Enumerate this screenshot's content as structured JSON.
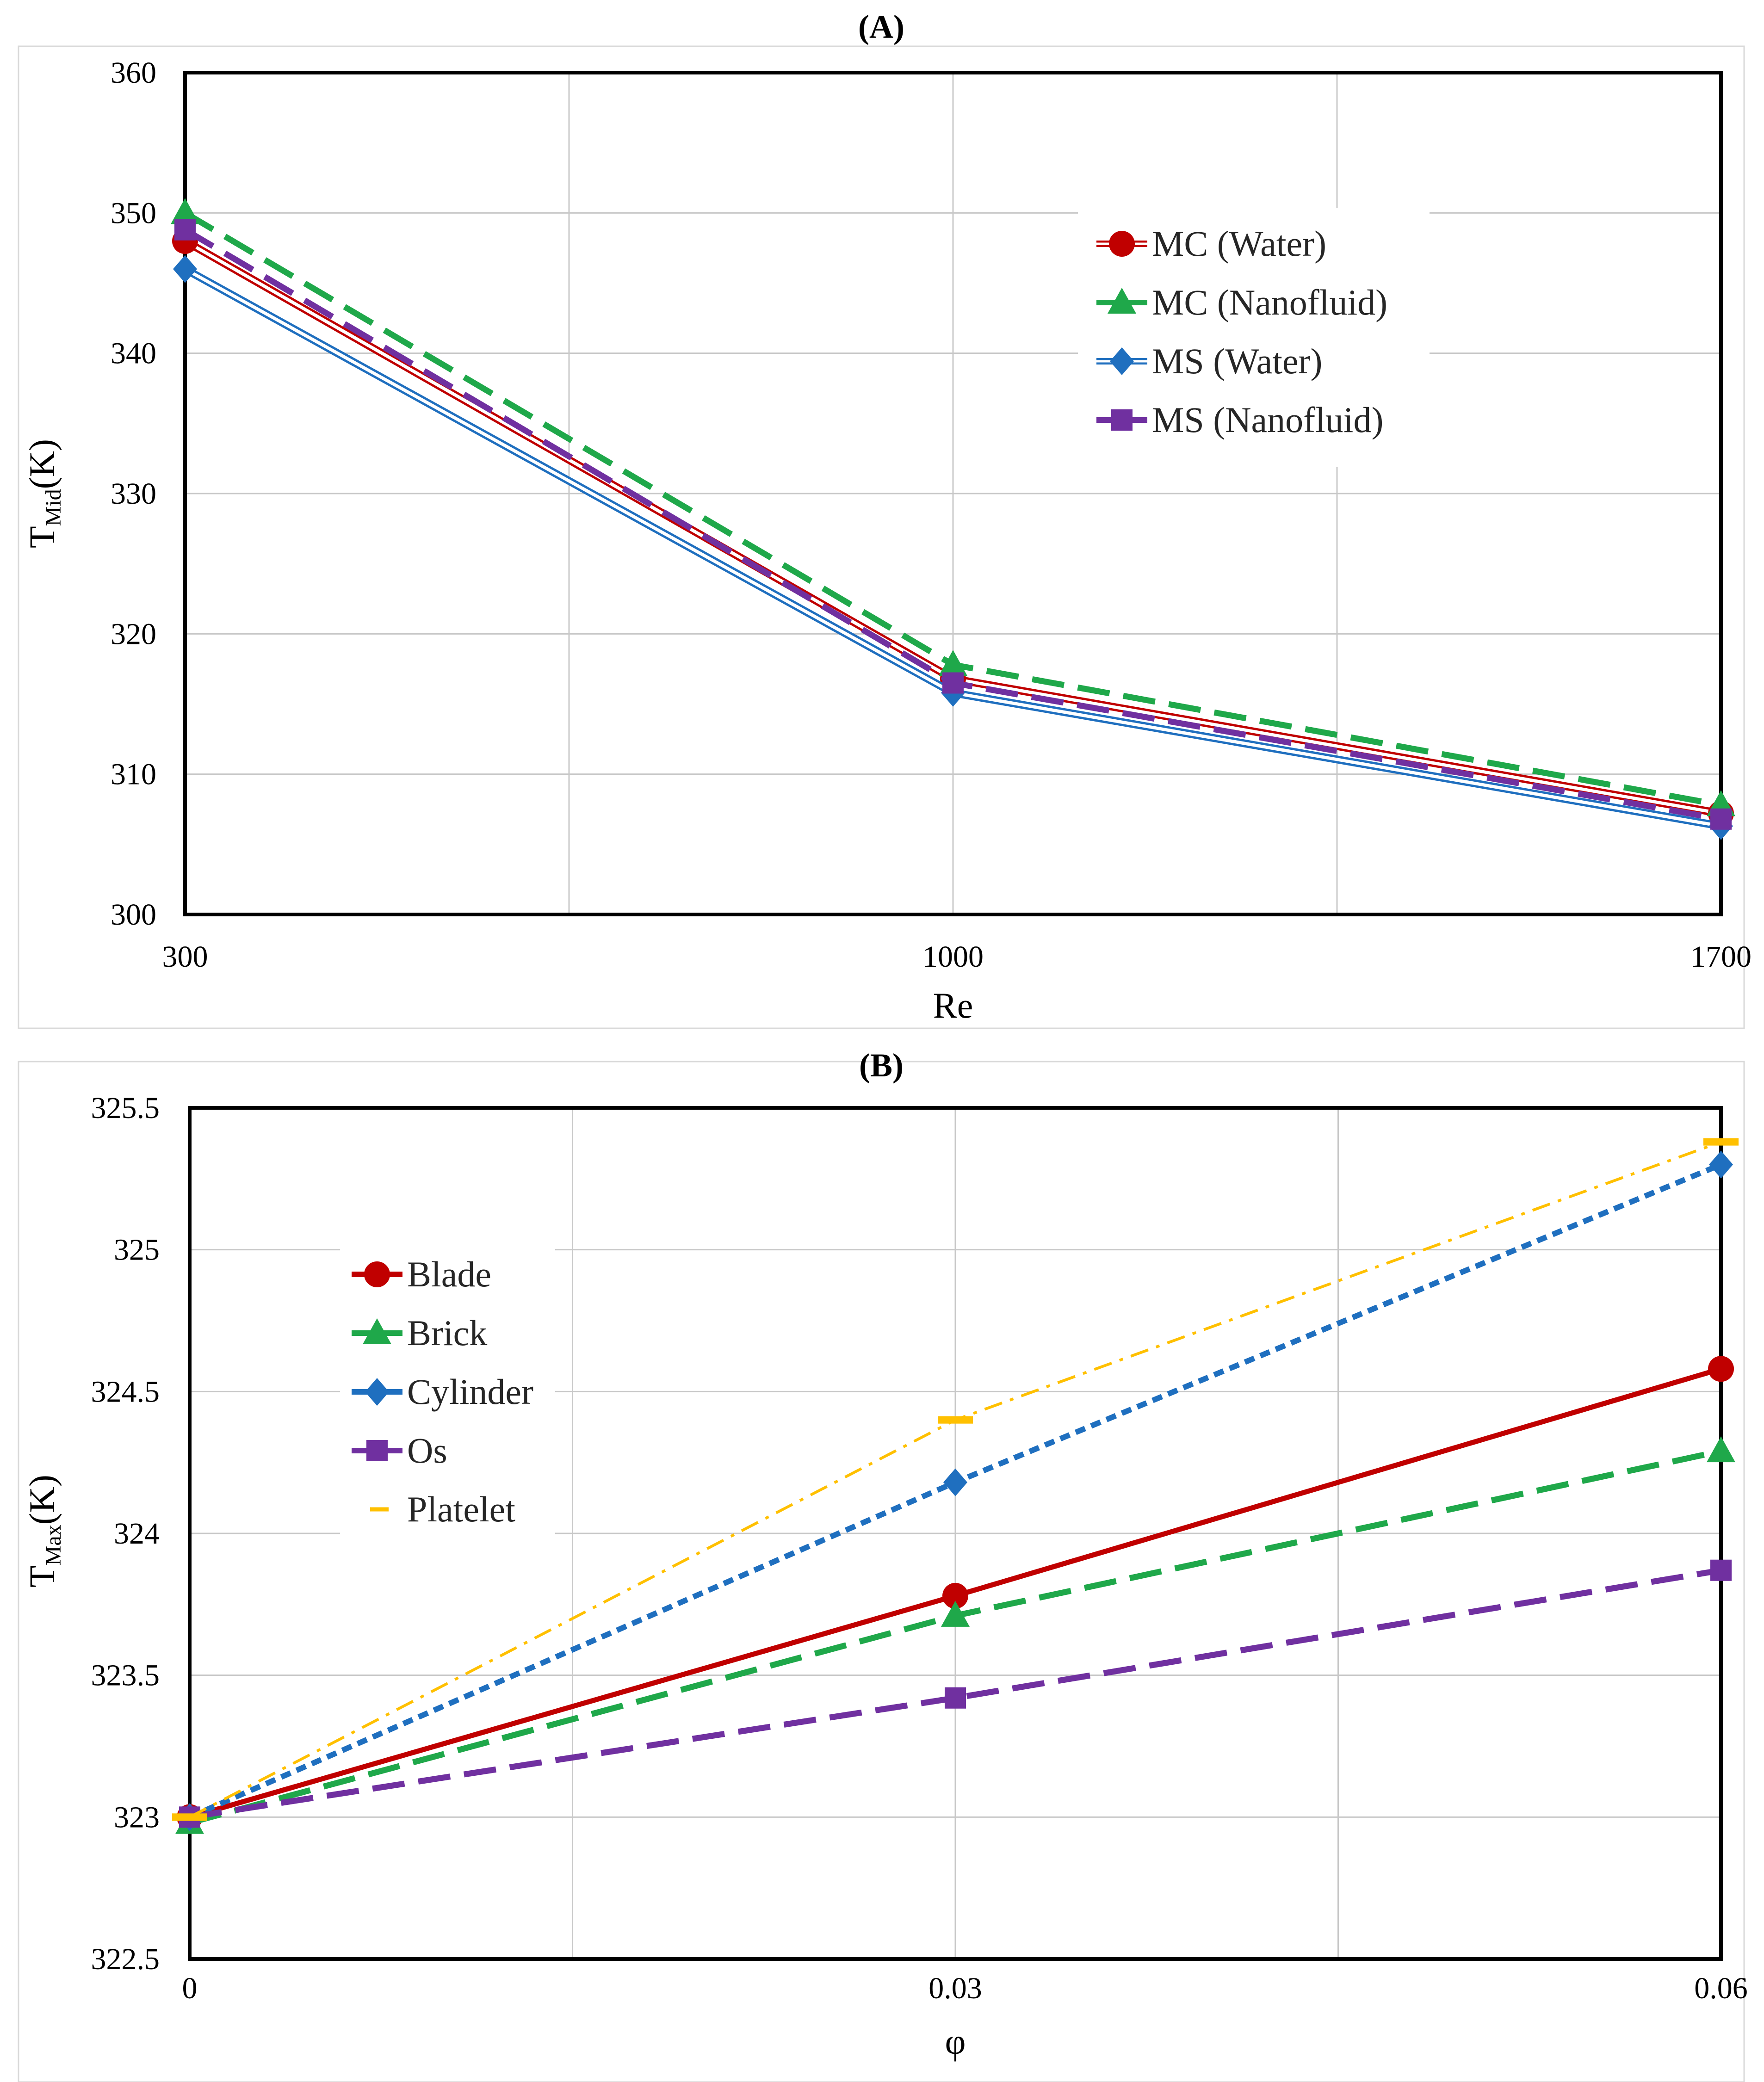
{
  "chart_data": [
    {
      "panel_label": "(A)",
      "type": "line",
      "xlabel": "Re",
      "ylabel_main": "T",
      "ylabel_sub": "Mid",
      "ylabel_unit": "(K)",
      "x": [
        300,
        1000,
        1700
      ],
      "x_ticks": [
        "300",
        "1000",
        "1700"
      ],
      "xlim": [
        300,
        1700
      ],
      "ylim": [
        300,
        360
      ],
      "y_ticks": [
        "300",
        "310",
        "320",
        "330",
        "340",
        "350",
        "360"
      ],
      "grid": true,
      "legend_position": "top-right",
      "series": [
        {
          "name": "MC (Water)",
          "values": [
            348,
            316.8,
            307.2
          ],
          "color": "#c00000",
          "marker": "circle",
          "line": "double"
        },
        {
          "name": "MC (Nanofluid)",
          "values": [
            350,
            317.8,
            307.8
          ],
          "color": "#1fa84a",
          "marker": "triangle",
          "line": "dashed"
        },
        {
          "name": "MS (Water)",
          "values": [
            346,
            315.8,
            306.3
          ],
          "color": "#1f6fbf",
          "marker": "diamond",
          "line": "double"
        },
        {
          "name": "MS (Nanofluid)",
          "values": [
            348.8,
            316.5,
            306.8
          ],
          "color": "#7030a0",
          "marker": "square",
          "line": "dashed"
        }
      ]
    },
    {
      "panel_label": "(B)",
      "type": "line",
      "xlabel": "φ",
      "ylabel_main": "T",
      "ylabel_sub": "Max",
      "ylabel_unit": "(K)",
      "x": [
        0,
        0.03,
        0.06
      ],
      "x_ticks": [
        "0",
        "0.03",
        "0.06"
      ],
      "xlim": [
        0,
        0.06
      ],
      "ylim": [
        322.5,
        325.5
      ],
      "y_ticks": [
        "322.5",
        "323",
        "323.5",
        "324",
        "324.5",
        "325",
        "325.5"
      ],
      "grid": true,
      "legend_position": "top-left",
      "series": [
        {
          "name": "Blade",
          "values": [
            323,
            323.78,
            324.58
          ],
          "color": "#c00000",
          "marker": "circle",
          "line": "solid"
        },
        {
          "name": "Brick",
          "values": [
            322.98,
            323.71,
            324.29
          ],
          "color": "#1fa84a",
          "marker": "triangle",
          "line": "dashed"
        },
        {
          "name": "Cylinder",
          "values": [
            323,
            324.18,
            325.3
          ],
          "color": "#1f6fbf",
          "marker": "diamond",
          "line": "dotted"
        },
        {
          "name": "Os",
          "values": [
            323,
            323.42,
            323.87
          ],
          "color": "#7030a0",
          "marker": "square",
          "line": "dashed"
        },
        {
          "name": "Platelet",
          "values": [
            323,
            324.4,
            325.38
          ],
          "color": "#ffc000",
          "marker": "dash",
          "line": "dashdot"
        }
      ]
    }
  ]
}
